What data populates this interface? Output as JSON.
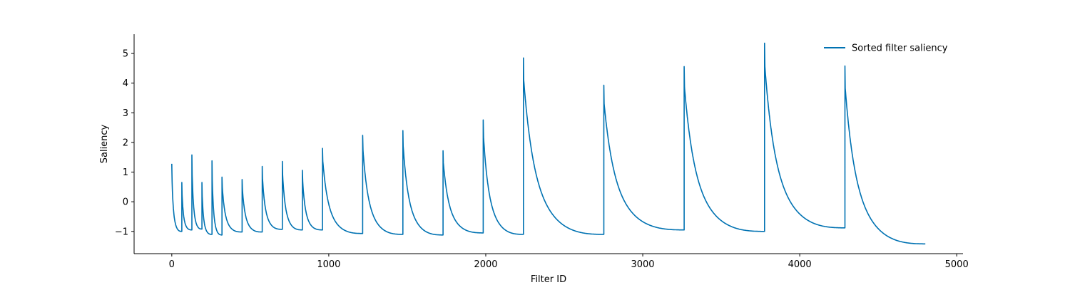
{
  "chart_data": {
    "type": "line",
    "title": "",
    "xlabel": "Filter ID",
    "ylabel": "Saliency",
    "xlim": [
      -240,
      5040
    ],
    "ylim": [
      -1.75,
      5.65
    ],
    "xticks": [
      0,
      1000,
      2000,
      3000,
      4000,
      5000
    ],
    "yticks": [
      -1,
      0,
      1,
      2,
      3,
      4,
      5
    ],
    "grid": false,
    "legend_position": "top-right",
    "series": [
      {
        "name": "Sorted filter saliency",
        "color": "#0072b2",
        "segments": [
          {
            "start": 0,
            "end": 64,
            "peak": 1.28,
            "low": -1.0
          },
          {
            "start": 64,
            "end": 128,
            "peak": 0.65,
            "low": -0.95
          },
          {
            "start": 128,
            "end": 192,
            "peak": 1.58,
            "low": -0.92
          },
          {
            "start": 192,
            "end": 256,
            "peak": 0.65,
            "low": -1.1
          },
          {
            "start": 256,
            "end": 320,
            "peak": 1.38,
            "low": -1.12
          },
          {
            "start": 320,
            "end": 448,
            "peak": 0.83,
            "low": -1.02
          },
          {
            "start": 448,
            "end": 576,
            "peak": 0.75,
            "low": -1.02
          },
          {
            "start": 576,
            "end": 704,
            "peak": 1.19,
            "low": -0.93
          },
          {
            "start": 704,
            "end": 832,
            "peak": 1.36,
            "low": -0.95
          },
          {
            "start": 832,
            "end": 960,
            "peak": 1.06,
            "low": -0.95
          },
          {
            "start": 960,
            "end": 1216,
            "peak": 1.8,
            "low": -1.07
          },
          {
            "start": 1216,
            "end": 1472,
            "peak": 2.24,
            "low": -1.1
          },
          {
            "start": 1472,
            "end": 1728,
            "peak": 2.4,
            "low": -1.12
          },
          {
            "start": 1728,
            "end": 1984,
            "peak": 1.72,
            "low": -1.05
          },
          {
            "start": 1984,
            "end": 2240,
            "peak": 2.76,
            "low": -1.1
          },
          {
            "start": 2240,
            "end": 2752,
            "peak": 4.85,
            "low": -1.1
          },
          {
            "start": 2752,
            "end": 3264,
            "peak": 3.93,
            "low": -0.95
          },
          {
            "start": 3264,
            "end": 3776,
            "peak": 4.56,
            "low": -1.0
          },
          {
            "start": 3776,
            "end": 4288,
            "peak": 5.35,
            "low": -0.88
          },
          {
            "start": 4288,
            "end": 4800,
            "peak": 4.58,
            "low": -1.42
          }
        ]
      }
    ]
  }
}
